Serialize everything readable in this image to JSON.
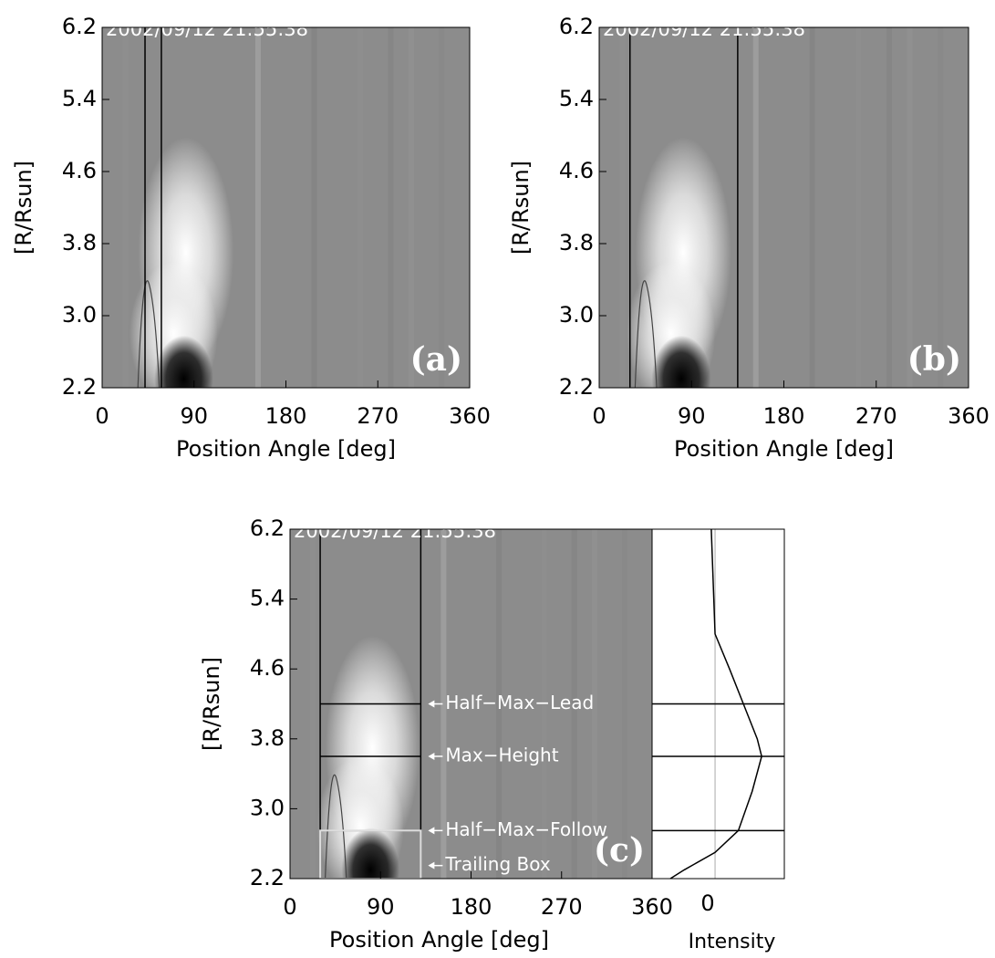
{
  "chart_data": [
    {
      "type": "heatmap",
      "timestamp": "2002/09/12 21:55:38",
      "panel_label": "(a)",
      "xlabel": "Position Angle [deg]",
      "ylabel": "[R/Rsun]",
      "xlim": [
        0,
        360
      ],
      "ylim": [
        2.2,
        6.2
      ],
      "xticks": [
        0,
        90,
        180,
        270,
        360
      ],
      "yticks": [
        2.2,
        {
          "value": 3,
          "label": "3.0"
        },
        3.8,
        4.6,
        5.4,
        6.2
      ],
      "vlines": [
        42,
        58
      ]
    },
    {
      "type": "heatmap",
      "timestamp": "2002/09/12 21:55:38",
      "panel_label": "(b)",
      "xlabel": "Position Angle [deg]",
      "ylabel": "[R/Rsun]",
      "xlim": [
        0,
        360
      ],
      "ylim": [
        2.2,
        6.2
      ],
      "xticks": [
        0,
        90,
        180,
        270,
        360
      ],
      "yticks": [
        2.2,
        {
          "value": 3,
          "label": "3.0"
        },
        3.8,
        4.6,
        5.4,
        6.2
      ],
      "vlines": [
        30,
        135
      ]
    },
    {
      "type": "heatmap",
      "timestamp": "2002/09/12 21:55:38",
      "panel_label": "(c)",
      "xlabel": "Position Angle [deg]",
      "ylabel": "[R/Rsun]",
      "xlim": [
        0,
        360
      ],
      "ylim": [
        2.2,
        6.2
      ],
      "xticks": [
        0,
        90,
        180,
        270,
        360
      ],
      "yticks": [
        2.2,
        {
          "value": 3,
          "label": "3.0"
        },
        3.8,
        4.6,
        5.4,
        6.2
      ],
      "vlines": [
        30,
        130
      ],
      "hlines": [
        {
          "label": "Half−Max−Lead",
          "value": 4.2
        },
        {
          "label": "Max−Height",
          "value": 3.6
        },
        {
          "label": "Half−Max−Follow",
          "value": 2.75
        }
      ],
      "trailing_box": {
        "label": "Trailing Box",
        "ylim": [
          2.2,
          2.75
        ]
      }
    },
    {
      "type": "profile",
      "xlabel": "Intensity",
      "xlim": [
        -1,
        1.1
      ],
      "xticks": [
        0
      ],
      "ylim": [
        2.2,
        6.2
      ],
      "heights": [
        6.2,
        5.0,
        4.6,
        4.2,
        3.8,
        3.6,
        3.2,
        2.75,
        2.5,
        2.3,
        2.2
      ],
      "values": [
        -0.06,
        0.0,
        0.23,
        0.45,
        0.67,
        0.74,
        0.59,
        0.37,
        0.0,
        -0.49,
        -0.71
      ]
    }
  ]
}
